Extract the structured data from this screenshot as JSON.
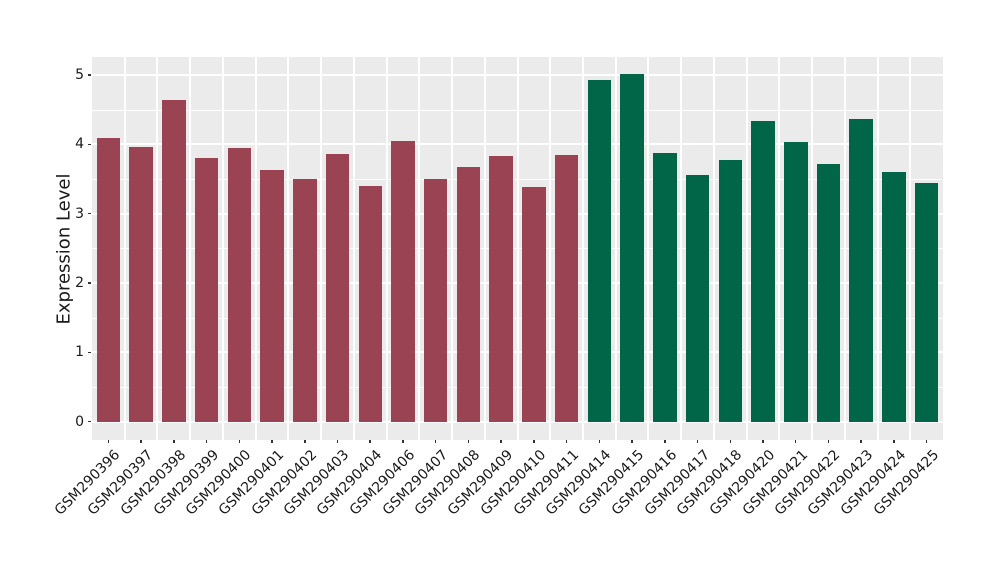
{
  "figure": {
    "background": "#FFFFFF"
  },
  "chart_data": {
    "type": "bar",
    "title": "",
    "xlabel": "",
    "ylabel": "Expression Level",
    "categories": [
      "GSM290396",
      "GSM290397",
      "GSM290398",
      "GSM290399",
      "GSM290400",
      "GSM290401",
      "GSM290402",
      "GSM290403",
      "GSM290404",
      "GSM290406",
      "GSM290407",
      "GSM290408",
      "GSM290409",
      "GSM290410",
      "GSM290411",
      "GSM290414",
      "GSM290415",
      "GSM290416",
      "GSM290417",
      "GSM290418",
      "GSM290420",
      "GSM290421",
      "GSM290422",
      "GSM290423",
      "GSM290424",
      "GSM290425"
    ],
    "values": [
      4.09,
      3.96,
      4.64,
      3.8,
      3.95,
      3.63,
      3.5,
      3.86,
      3.4,
      4.05,
      3.5,
      3.68,
      3.83,
      3.39,
      3.84,
      4.93,
      5.02,
      3.87,
      3.56,
      3.77,
      4.34,
      4.04,
      3.71,
      4.37,
      3.6,
      3.44
    ],
    "bar_groups": [
      0,
      0,
      0,
      0,
      0,
      0,
      0,
      0,
      0,
      0,
      0,
      0,
      0,
      0,
      0,
      1,
      1,
      1,
      1,
      1,
      1,
      1,
      1,
      1,
      1,
      1
    ],
    "group_colors": [
      "#9A4453",
      "#006647"
    ],
    "y_ticks": [
      "0",
      "1",
      "2",
      "3",
      "4",
      "5"
    ],
    "ylim": [
      -0.26,
      5.27
    ],
    "grid": "major and minor, white on gray panel",
    "legend": "none",
    "colors": {
      "panel_background": "#EBEBEB",
      "grid": "#FFFFFF",
      "axis_text": "#1A1A1A",
      "tick_marks": "#333333"
    }
  }
}
